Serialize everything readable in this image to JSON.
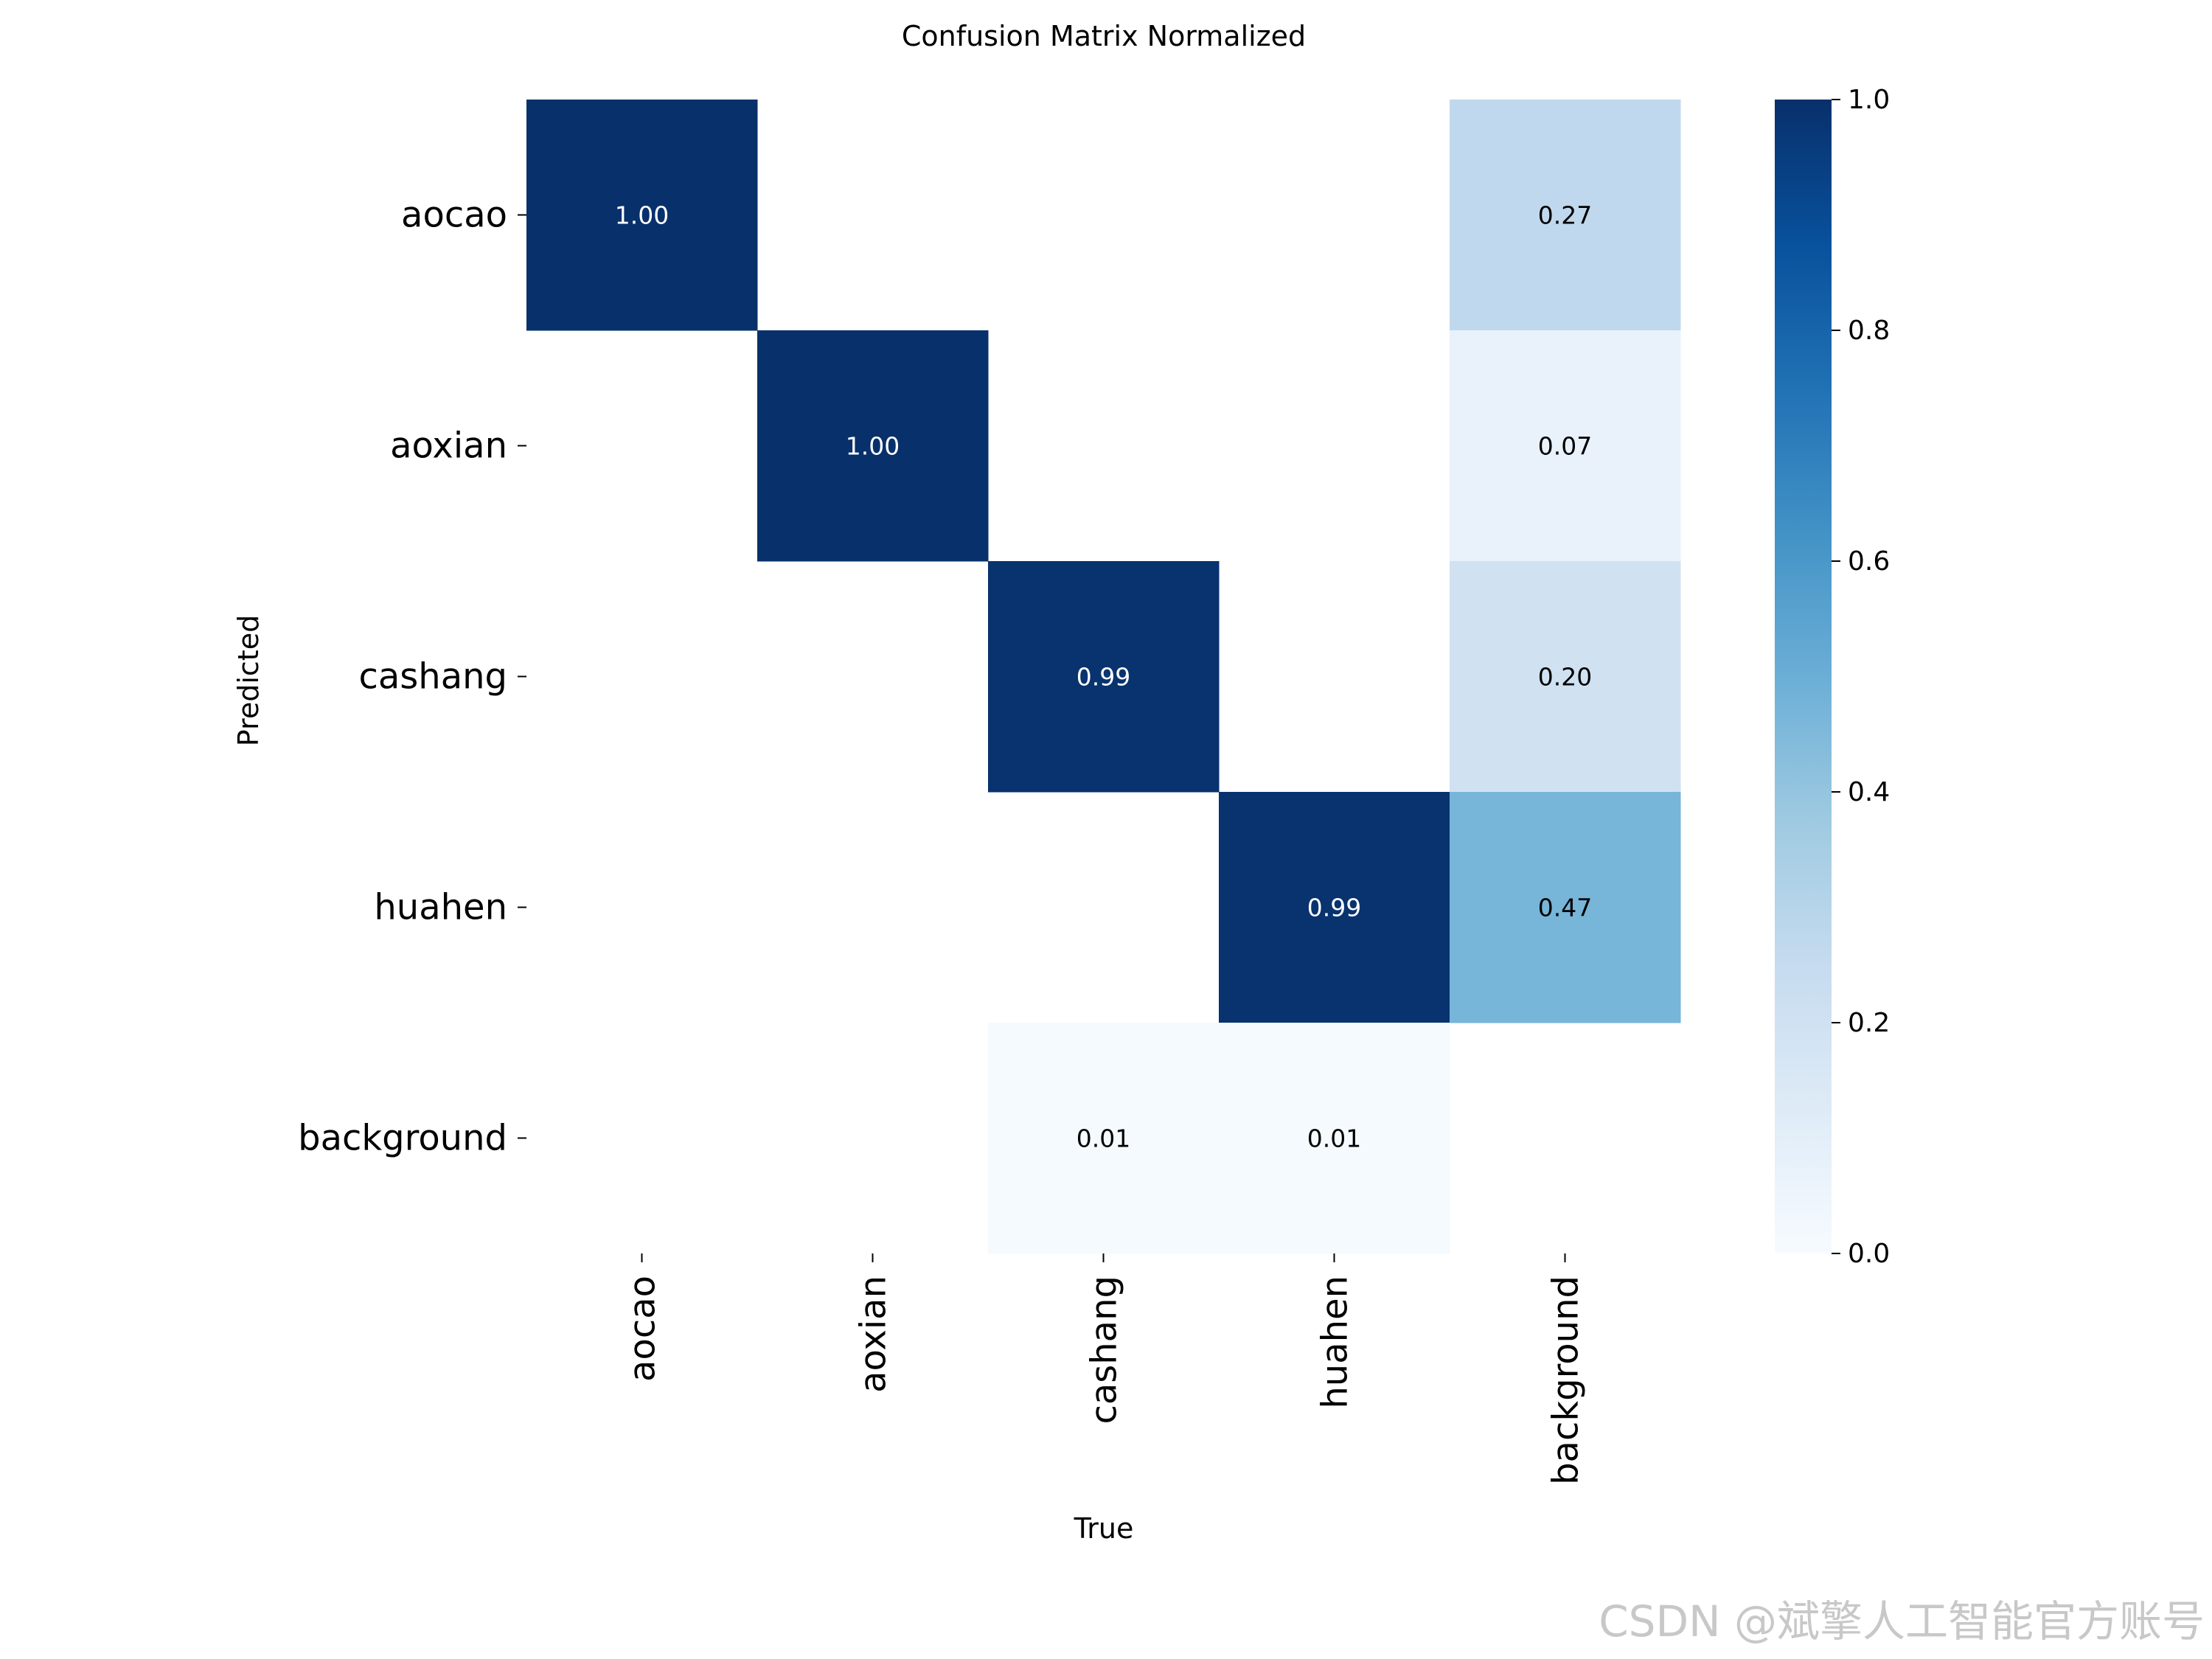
{
  "chart_data": {
    "type": "heatmap",
    "title": "Confusion Matrix Normalized",
    "xlabel": "True",
    "ylabel": "Predicted",
    "x_categories": [
      "aocao",
      "aoxian",
      "cashang",
      "huahen",
      "background"
    ],
    "y_categories": [
      "aocao",
      "aoxian",
      "cashang",
      "huahen",
      "background"
    ],
    "values": [
      [
        1.0,
        null,
        null,
        null,
        0.27
      ],
      [
        null,
        1.0,
        null,
        null,
        0.07
      ],
      [
        null,
        null,
        0.99,
        null,
        0.2
      ],
      [
        null,
        null,
        null,
        0.99,
        0.47
      ],
      [
        null,
        null,
        0.01,
        0.01,
        null
      ]
    ],
    "value_format": "0.00",
    "colormap": "Blues",
    "colorbar": {
      "range": [
        0.0,
        1.0
      ],
      "ticks": [
        "0.0",
        "0.2",
        "0.4",
        "0.6",
        "0.8",
        "1.0"
      ]
    }
  },
  "watermark": "CSDN @斌擎人工智能官方账号"
}
